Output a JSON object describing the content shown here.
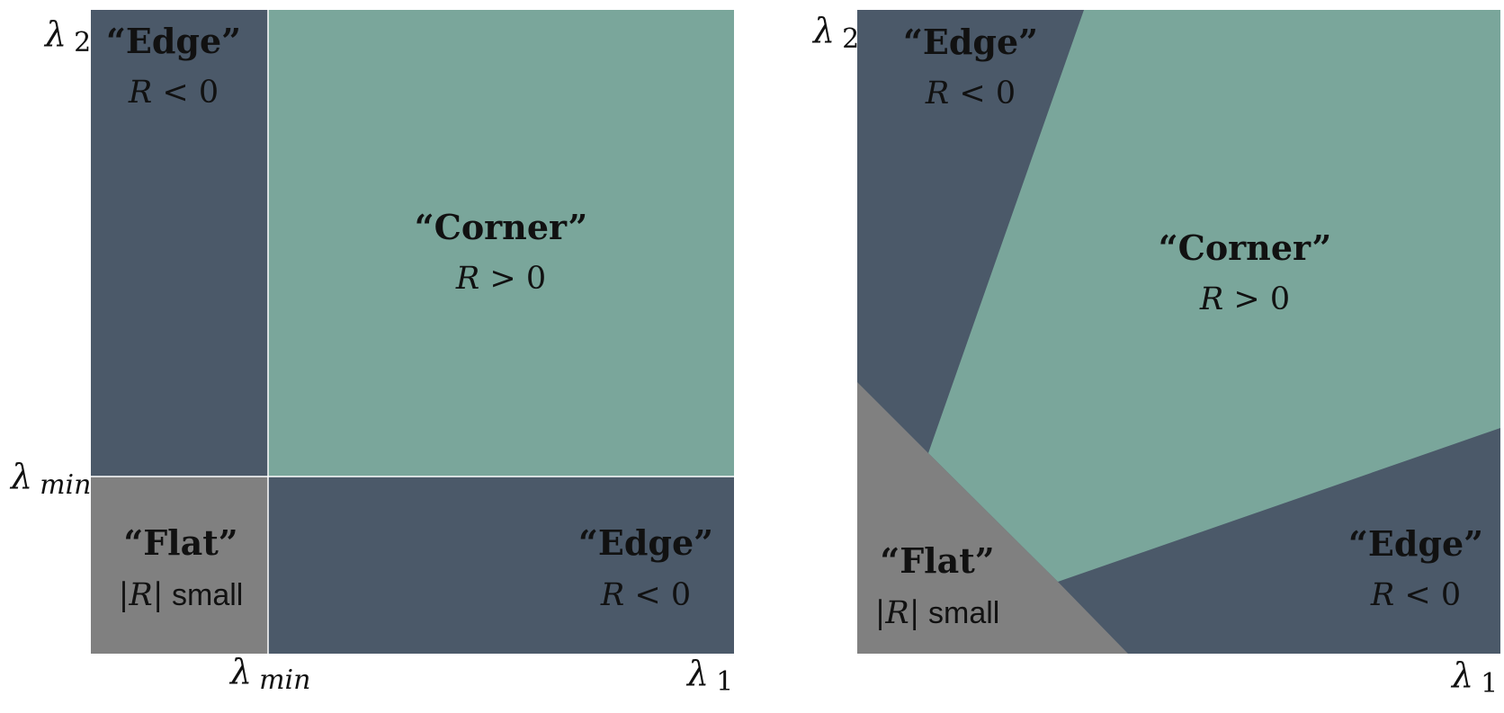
{
  "colors": {
    "edge": "#4b5969",
    "corner": "#7aa69b",
    "flat": "#808080",
    "background": "#ffffff",
    "text": "#111111"
  },
  "symbols": {
    "lambda": "λ",
    "sub_2": "2",
    "sub_1": "1",
    "sub_min": "min"
  },
  "regions": {
    "edge_title": "“Edge”",
    "corner_title": "“Corner”",
    "flat_title": "“Flat”",
    "R": "R",
    "lt_zero": " < 0",
    "gt_zero": " > 0",
    "bar": "|",
    "small": " small"
  }
}
